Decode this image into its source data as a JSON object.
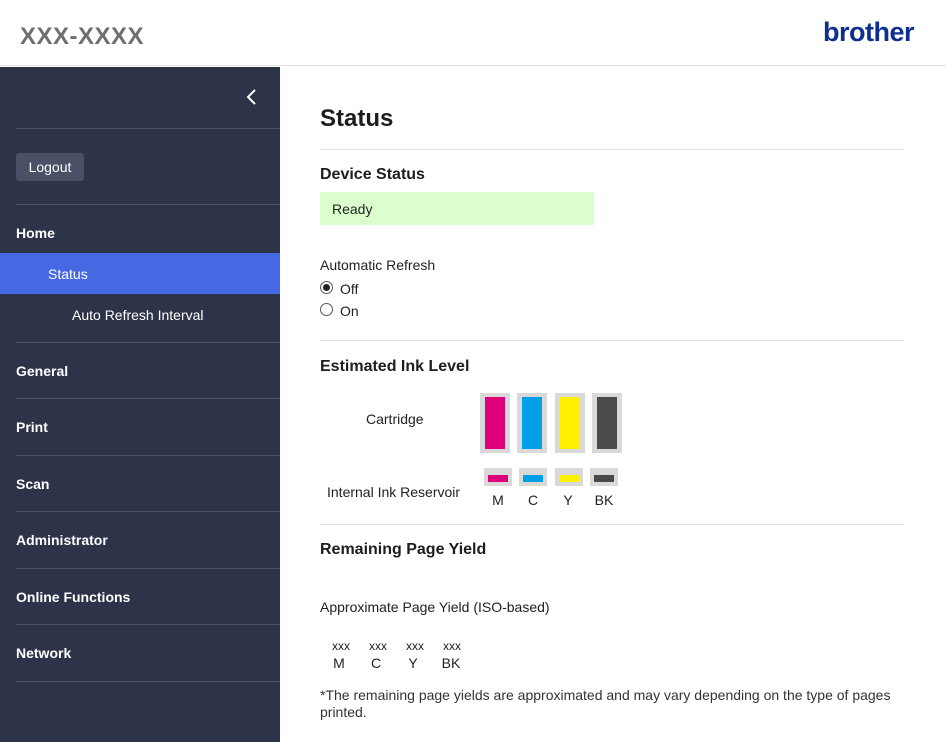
{
  "header": {
    "model_name": "XXX-XXXX",
    "brand_logo": "brother"
  },
  "sidebar": {
    "collapse_icon": "chevron-left-icon",
    "logout_label": "Logout",
    "items": [
      {
        "label": "Home"
      },
      {
        "label": "Status",
        "active": true
      },
      {
        "label": "Auto Refresh Interval"
      },
      {
        "label": "General"
      },
      {
        "label": "Print"
      },
      {
        "label": "Scan"
      },
      {
        "label": "Administrator"
      },
      {
        "label": "Online Functions"
      },
      {
        "label": "Network"
      }
    ],
    "colors": {
      "background": "#2d3449",
      "active": "#4768e3"
    }
  },
  "main": {
    "title": "Status",
    "device_status": {
      "heading": "Device Status",
      "value": "Ready",
      "color": "#daffcc"
    },
    "auto_refresh": {
      "label": "Automatic Refresh",
      "options": [
        {
          "label": "Off",
          "selected": true
        },
        {
          "label": "On",
          "selected": false
        }
      ]
    },
    "ink_level": {
      "heading": "Estimated Ink Level",
      "cartridge_label": "Cartridge",
      "reservoir_label": "Internal Ink Reservoir",
      "inks": [
        {
          "name": "M",
          "color": "#e0007a"
        },
        {
          "name": "C",
          "color": "#00a0e9"
        },
        {
          "name": "Y",
          "color": "#fff000"
        },
        {
          "name": "BK",
          "color": "#4a4a4a"
        }
      ]
    },
    "page_yield": {
      "heading": "Remaining Page Yield",
      "label": "Approximate Page Yield (ISO-based)",
      "columns": [
        {
          "value": "xxx",
          "name": "M"
        },
        {
          "value": "xxx",
          "name": "C"
        },
        {
          "value": "xxx",
          "name": "Y"
        },
        {
          "value": "xxx",
          "name": "BK"
        }
      ],
      "note": "*The remaining page yields are approximated and may vary depending on the type of pages printed."
    }
  }
}
